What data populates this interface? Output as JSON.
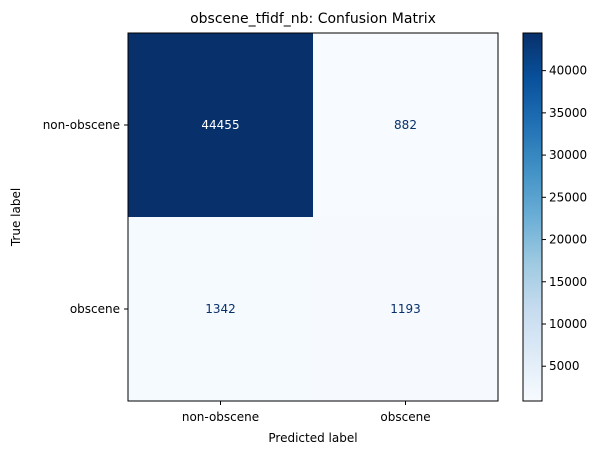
{
  "chart_data": {
    "type": "heatmap",
    "title": "obscene_tfidf_nb: Confusion Matrix",
    "xlabel": "Predicted label",
    "ylabel": "True label",
    "x_categories": [
      "non-obscene",
      "obscene"
    ],
    "y_categories": [
      "non-obscene",
      "obscene"
    ],
    "matrix": [
      [
        44455,
        882
      ],
      [
        1342,
        1193
      ]
    ],
    "cell_labels": [
      [
        "44455",
        "882"
      ],
      [
        "1342",
        "1193"
      ]
    ],
    "colormap": "Blues",
    "color_low": "#f7fbff",
    "color_high": "#08306b",
    "colorbar": {
      "range": [
        882,
        44455
      ],
      "ticks": [
        5000,
        10000,
        15000,
        20000,
        25000,
        30000,
        35000,
        40000
      ],
      "tick_labels": [
        "5000",
        "10000",
        "15000",
        "20000",
        "25000",
        "30000",
        "35000",
        "40000"
      ]
    },
    "grid": false
  }
}
